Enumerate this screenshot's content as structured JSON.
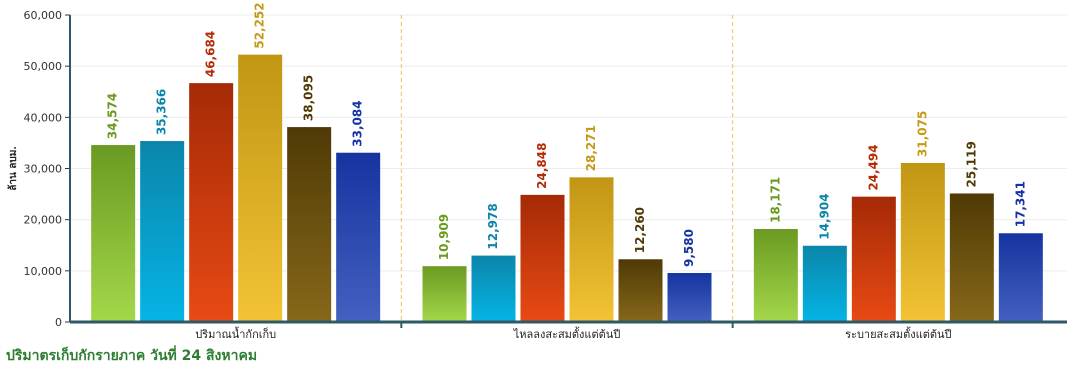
{
  "caption": "ปริมาตรเก็บกักรายภาค วันที่ 24 สิงหาคม",
  "chart_data": {
    "type": "bar",
    "title": "",
    "xlabel": "",
    "ylabel": "ล้าน ลบม.",
    "ylim": [
      0,
      60000
    ],
    "yticks": [
      0,
      10000,
      20000,
      30000,
      40000,
      50000,
      60000
    ],
    "ytick_labels": [
      "0",
      "10,000",
      "20,000",
      "30,000",
      "40,000",
      "50,000",
      "60,000"
    ],
    "categories": [
      "ปริมาณน้ำกักเก็บ",
      "ไหลลงสะสมตั้งแต่ต้นปี",
      "ระบายสะสมตั้งแต่ต้นปี"
    ],
    "grid": true,
    "series": [
      {
        "values": [
          34574,
          10909,
          18171
        ],
        "labels": [
          "34,574",
          "10,909",
          "18,171"
        ],
        "color_top": "#6a9a22",
        "color_bottom": "#a4d84a",
        "label_color": "#6a9a22"
      },
      {
        "values": [
          35366,
          12978,
          14904
        ],
        "labels": [
          "35,366",
          "12,978",
          "14,904"
        ],
        "color_top": "#0b86aa",
        "color_bottom": "#05b4e6",
        "label_color": "#0b86aa"
      },
      {
        "values": [
          46684,
          24848,
          24494
        ],
        "labels": [
          "46,684",
          "24,848",
          "24,494"
        ],
        "color_top": "#a52a06",
        "color_bottom": "#e84a14",
        "label_color": "#b52c08"
      },
      {
        "values": [
          52252,
          28271,
          31075
        ],
        "labels": [
          "52,252",
          "28,271",
          "31,075"
        ],
        "color_top": "#c19614",
        "color_bottom": "#f3c335",
        "label_color": "#c49a16"
      },
      {
        "values": [
          38095,
          12260,
          25119
        ],
        "labels": [
          "38,095",
          "12,260",
          "25,119"
        ],
        "color_top": "#4f3a06",
        "color_bottom": "#86681a",
        "label_color": "#4f3a06"
      },
      {
        "values": [
          33084,
          9580,
          17341
        ],
        "labels": [
          "33,084",
          "9,580",
          "17,341"
        ],
        "color_top": "#1634a0",
        "color_bottom": "#4460c0",
        "label_color": "#1634a0"
      }
    ]
  }
}
